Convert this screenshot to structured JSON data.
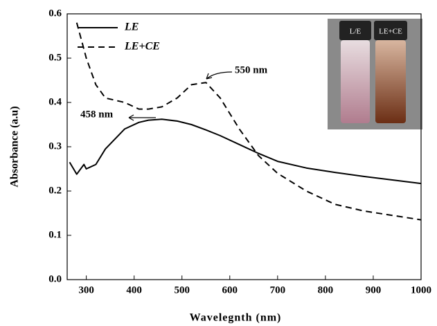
{
  "chart_data": {
    "type": "line",
    "xlabel": "Wavelegnth (nm)",
    "ylabel": "Absorbance (a.u)",
    "x": [
      265,
      280,
      295,
      300,
      320,
      340,
      380,
      410,
      430,
      458,
      490,
      520,
      550,
      580,
      620,
      660,
      700,
      760,
      820,
      880,
      940,
      1000
    ],
    "series": [
      {
        "name": "LE",
        "color": "#000000",
        "dash": false,
        "values": [
          0.265,
          0.238,
          0.26,
          0.25,
          0.26,
          0.295,
          0.34,
          0.355,
          0.36,
          0.362,
          0.358,
          0.35,
          0.338,
          0.325,
          0.305,
          0.285,
          0.267,
          0.252,
          0.242,
          0.233,
          0.225,
          0.217
        ]
      },
      {
        "name": "LE+CE",
        "color": "#000000",
        "dash": true,
        "values": [
          null,
          0.58,
          0.52,
          0.5,
          0.44,
          0.41,
          0.4,
          0.385,
          0.385,
          0.39,
          0.41,
          0.44,
          0.445,
          0.41,
          0.34,
          0.28,
          0.24,
          0.2,
          0.17,
          0.155,
          0.145,
          0.135
        ]
      }
    ],
    "xlim": [
      260,
      1000
    ],
    "xticks": [
      300,
      400,
      500,
      600,
      700,
      800,
      900,
      1000
    ],
    "ylim": [
      0,
      0.6
    ],
    "yticks": [
      {
        "value": 0,
        "label": "0.0"
      },
      0.1,
      0.2,
      0.3,
      0.4,
      0.5,
      0.6
    ],
    "annotations": [
      "458 nm",
      "550 nm"
    ],
    "inset_labels": [
      "L/E",
      "LE+CE"
    ],
    "legend": "upper-left"
  }
}
